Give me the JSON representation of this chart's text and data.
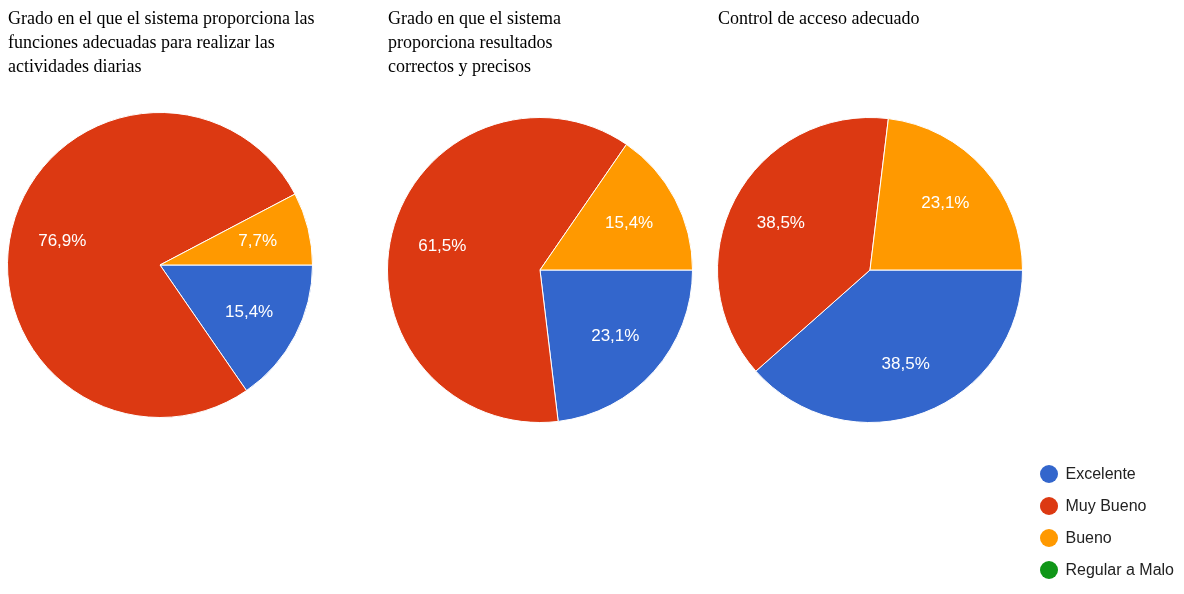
{
  "chart_data": [
    {
      "type": "pie",
      "title": "Grado en el que el sistema proporciona las funciones adecuadas para realizar las actividades diarias",
      "categories": [
        null,
        null,
        null,
        null
      ],
      "values": [
        15.4,
        76.9,
        7.7,
        0
      ],
      "colors": [
        "#3366cc",
        "#dc3912",
        "#ff9900",
        "#109618"
      ],
      "value_labels": [
        "15,4%",
        "76,9%",
        "7,7%",
        null
      ],
      "legend": false
    },
    {
      "type": "pie",
      "title": "Grado en que el sistema proporciona resultados correctos y precisos",
      "categories": [
        null,
        null,
        null,
        null
      ],
      "values": [
        23.1,
        61.5,
        15.4,
        0
      ],
      "colors": [
        "#3366cc",
        "#dc3912",
        "#ff9900",
        "#109618"
      ],
      "value_labels": [
        "23,1%",
        "61,5%",
        "15,4%",
        null
      ],
      "legend": false
    },
    {
      "type": "pie",
      "title": "Control de acceso adecuado",
      "categories": [
        "Excelente",
        "Muy Bueno",
        "Bueno",
        "Regular a Malo"
      ],
      "values": [
        38.5,
        38.5,
        23.1,
        0
      ],
      "colors": [
        "#3366cc",
        "#dc3912",
        "#ff9900",
        "#109618"
      ],
      "value_labels": [
        "38,5%",
        "38,5%",
        "23,1%",
        null
      ],
      "legend": "bottom right"
    }
  ]
}
